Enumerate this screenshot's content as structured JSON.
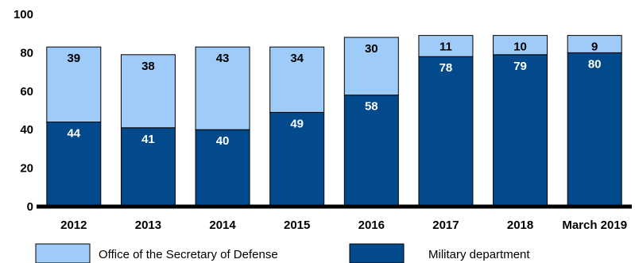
{
  "chart_data": {
    "type": "bar",
    "stacked": true,
    "title": "",
    "xlabel": "",
    "ylabel": "",
    "ylim": [
      0,
      100
    ],
    "yticks": [
      0,
      20,
      40,
      60,
      80,
      100
    ],
    "categories": [
      "2012",
      "2013",
      "2014",
      "2015",
      "2016",
      "2017",
      "2018",
      "March 2019"
    ],
    "series": [
      {
        "name": "Military department",
        "color": "#034a8c",
        "label_color": "#ffffff",
        "values": [
          44,
          41,
          40,
          49,
          58,
          78,
          79,
          80
        ]
      },
      {
        "name": "Office of the Secretary of Defense",
        "color": "#9ecbf7",
        "label_color": "#000000",
        "values": [
          39,
          38,
          43,
          34,
          30,
          11,
          10,
          9
        ]
      }
    ],
    "legend": {
      "position": "bottom",
      "items": [
        "Office of the Secretary of Defense",
        "Military department"
      ]
    },
    "grid": false
  }
}
